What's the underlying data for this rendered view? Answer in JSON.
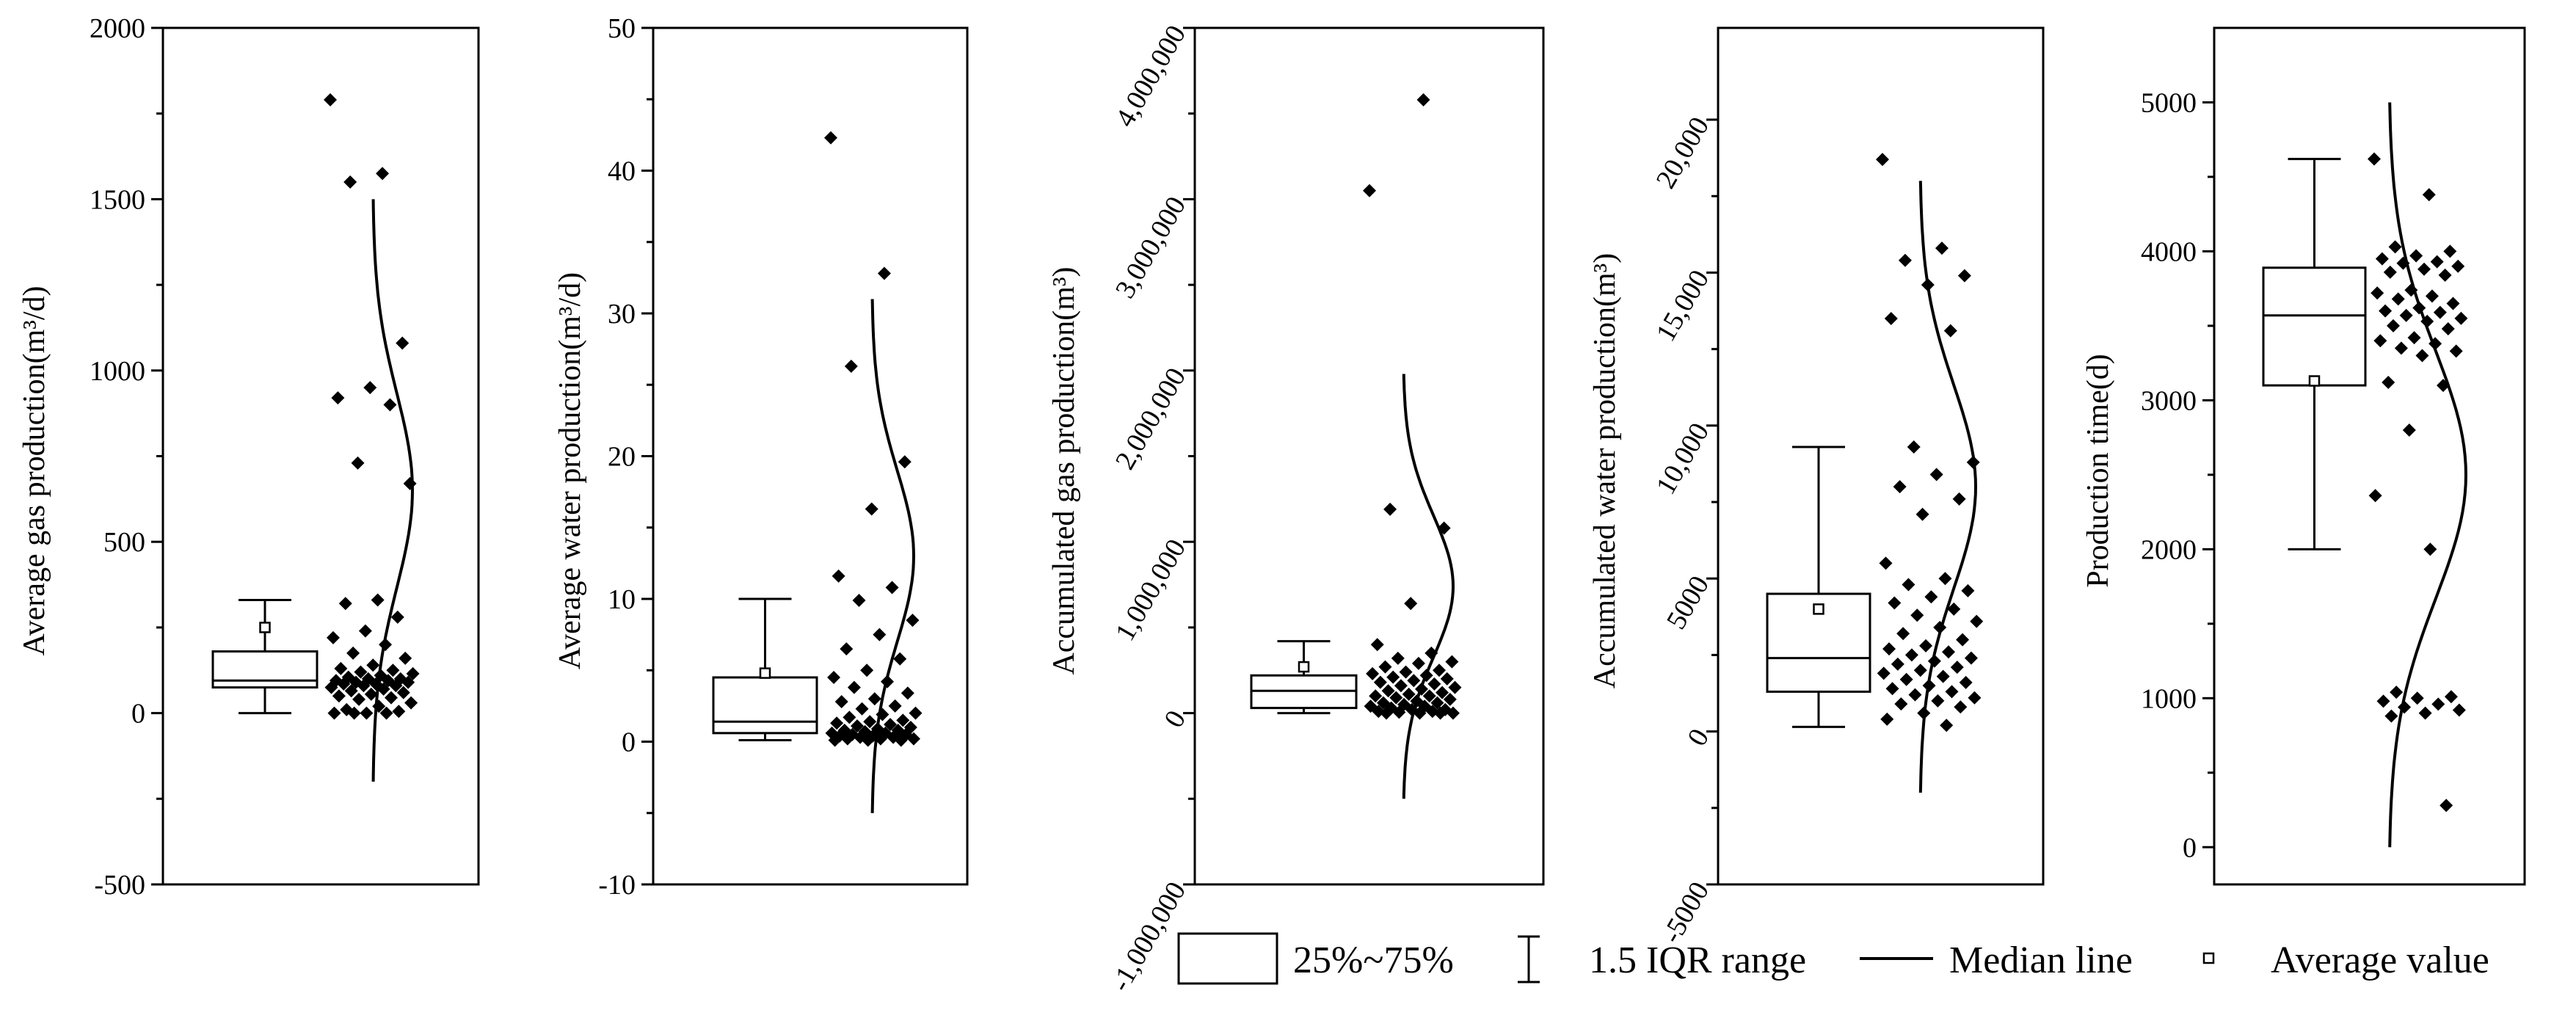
{
  "chart_data": [
    {
      "type": "box",
      "ylabel": "Average gas production(m³/d)",
      "ylim": [
        -500,
        2000
      ],
      "yticks": [
        -500,
        0,
        500,
        1000,
        1500,
        2000
      ],
      "ytick_labels": [
        "-500",
        "0",
        "500",
        "1000",
        "1500",
        "2000"
      ],
      "box": {
        "q1": 75,
        "median": 95,
        "q3": 180,
        "whisker_low": 0,
        "whisker_high": 330,
        "mean": 250
      },
      "points": [
        1790,
        1575,
        1550,
        1080,
        950,
        920,
        900,
        730,
        670,
        330,
        320,
        280,
        240,
        220,
        200,
        175,
        160,
        140,
        130,
        125,
        120,
        115,
        110,
        105,
        100,
        100,
        95,
        95,
        90,
        90,
        85,
        85,
        80,
        80,
        75,
        70,
        65,
        60,
        55,
        50,
        45,
        40,
        30,
        20,
        10,
        5,
        0,
        0,
        0,
        0
      ],
      "median_line": {
        "y_start": -200,
        "y_end": 1500
      }
    },
    {
      "type": "box",
      "ylabel": "Average water production(m³/d)",
      "ylim": [
        -10,
        50
      ],
      "yticks": [
        -10,
        0,
        10,
        20,
        30,
        40,
        50
      ],
      "ytick_labels": [
        "-10",
        "0",
        "10",
        "20",
        "30",
        "40",
        "50"
      ],
      "box": {
        "q1": 0.6,
        "median": 1.4,
        "q3": 4.5,
        "whisker_low": 0.1,
        "whisker_high": 10,
        "mean": 4.8
      },
      "points": [
        42.3,
        32.8,
        26.3,
        19.6,
        16.3,
        11.6,
        10.8,
        9.9,
        8.5,
        7.5,
        6.5,
        5.8,
        5.0,
        4.5,
        4.2,
        3.8,
        3.4,
        3.0,
        2.8,
        2.5,
        2.3,
        2.0,
        1.9,
        1.7,
        1.5,
        1.4,
        1.3,
        1.2,
        1.1,
        1.0,
        0.9,
        0.8,
        0.8,
        0.7,
        0.6,
        0.6,
        0.5,
        0.5,
        0.4,
        0.4,
        0.3,
        0.3,
        0.2,
        0.2,
        0.2,
        0.1,
        0.1,
        0.1
      ],
      "median_line": {
        "y_start": -5,
        "y_end": 31
      }
    },
    {
      "type": "box",
      "ylabel": "Accumulated gas production(m³)",
      "ylim": [
        -1000000,
        4000000
      ],
      "yticks": [
        -1000000,
        0,
        1000000,
        2000000,
        3000000,
        4000000
      ],
      "ytick_labels": [
        "-1,000,000",
        "0",
        "1,000,000",
        "2,000,000",
        "3,000,000",
        "4,000,000"
      ],
      "box": {
        "q1": 30000,
        "median": 130000,
        "q3": 220000,
        "whisker_low": 0,
        "whisker_high": 420000,
        "mean": 270000
      },
      "points": [
        3050000,
        3580000,
        1190000,
        1080000,
        640000,
        400000,
        350000,
        320000,
        300000,
        290000,
        270000,
        250000,
        240000,
        230000,
        220000,
        210000,
        200000,
        190000,
        180000,
        170000,
        160000,
        150000,
        140000,
        130000,
        120000,
        110000,
        100000,
        100000,
        90000,
        80000,
        70000,
        60000,
        60000,
        50000,
        40000,
        40000,
        30000,
        20000,
        20000,
        10000,
        10000,
        5000,
        0,
        0,
        0,
        0
      ],
      "median_line": {
        "y_start": -500000,
        "y_end": 1980000
      }
    },
    {
      "type": "box",
      "ylabel": "Accumulated water production(m³)",
      "ylim": [
        -5000,
        23000
      ],
      "yticks": [
        -5000,
        0,
        5000,
        10000,
        15000,
        20000
      ],
      "ytick_labels": [
        "-5000",
        "0",
        "5000",
        "10,000",
        "15,000",
        "20,000"
      ],
      "box": {
        "q1": 1300,
        "median": 2400,
        "q3": 4500,
        "whisker_low": 150,
        "whisker_high": 9300,
        "mean": 4000
      },
      "points": [
        18700,
        15800,
        15400,
        14900,
        14600,
        13500,
        13100,
        9300,
        8800,
        8400,
        8000,
        7600,
        7100,
        5500,
        5000,
        4800,
        4600,
        4400,
        4200,
        4000,
        3800,
        3600,
        3400,
        3200,
        3000,
        2800,
        2700,
        2600,
        2500,
        2400,
        2300,
        2200,
        2100,
        2000,
        1900,
        1800,
        1700,
        1600,
        1500,
        1400,
        1300,
        1200,
        1100,
        1000,
        900,
        800,
        600,
        400,
        200
      ],
      "median_line": {
        "y_start": -2000,
        "y_end": 18000
      }
    },
    {
      "type": "box",
      "ylabel": "Production time(d)",
      "ylim": [
        -250,
        5500
      ],
      "yticks": [
        0,
        1000,
        2000,
        3000,
        4000,
        5000
      ],
      "ytick_labels": [
        "0",
        "1000",
        "2000",
        "3000",
        "4000",
        "5000"
      ],
      "box": {
        "q1": 3100,
        "median": 3570,
        "q3": 3890,
        "whisker_low": 2000,
        "whisker_high": 4620,
        "mean": 3130
      },
      "points": [
        4620,
        4380,
        4030,
        4000,
        3970,
        3950,
        3930,
        3920,
        3900,
        3880,
        3860,
        3840,
        3740,
        3720,
        3700,
        3680,
        3650,
        3620,
        3600,
        3590,
        3570,
        3550,
        3530,
        3500,
        3480,
        3420,
        3400,
        3380,
        3350,
        3330,
        3300,
        3120,
        3100,
        2800,
        2360,
        2000,
        1040,
        1010,
        1000,
        980,
        960,
        940,
        920,
        900,
        880,
        280
      ],
      "median_line": {
        "y_start": 0,
        "y_end": 5000
      }
    }
  ],
  "legend": {
    "items": [
      {
        "symbol": "box",
        "label": "25%~75%"
      },
      {
        "symbol": "whisker",
        "label": "1.5 IQR range"
      },
      {
        "symbol": "line",
        "label": "Median line"
      },
      {
        "symbol": "square",
        "label": "Average value"
      }
    ]
  }
}
